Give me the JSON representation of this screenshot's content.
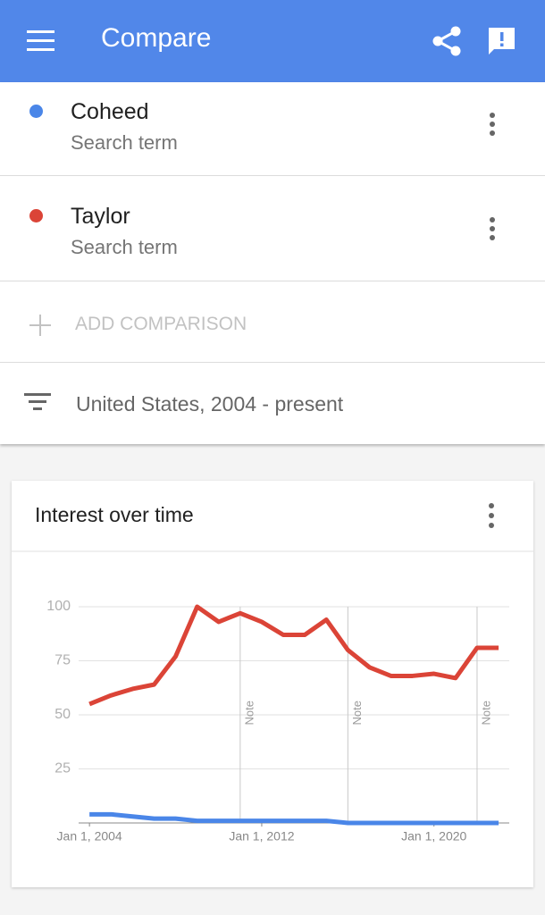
{
  "header": {
    "title": "Compare"
  },
  "add_comparison": "ADD COMPARISON",
  "filter": "United States, 2004 - present",
  "chart_data": {
    "type": "line",
    "title": "Interest over time",
    "x": [
      "2004-01-01",
      "2005-01-01",
      "2006-01-01",
      "2007-01-01",
      "2008-01-01",
      "2009-01-01",
      "2010-01-01",
      "2011-01-01",
      "2012-01-01",
      "2013-01-01",
      "2014-01-01",
      "2015-01-01",
      "2016-01-01",
      "2017-01-01",
      "2018-01-01",
      "2019-01-01",
      "2020-01-01",
      "2021-01-01",
      "2022-01-01",
      "2023-01-01"
    ],
    "series": [
      {
        "name": "Coheed",
        "subtitle": "Search term",
        "color": "#4a86e8",
        "values": [
          4,
          4,
          3,
          2,
          2,
          1,
          1,
          1,
          1,
          1,
          1,
          1,
          0,
          0,
          0,
          0,
          0,
          0,
          0,
          0
        ]
      },
      {
        "name": "Taylor",
        "subtitle": "Search term",
        "color": "#db4437",
        "values": [
          55,
          59,
          62,
          64,
          77,
          100,
          93,
          97,
          93,
          87,
          87,
          94,
          80,
          72,
          68,
          68,
          69,
          67,
          81,
          81
        ]
      }
    ],
    "xlim": [
      "2003-07-01",
      "2023-07-01"
    ],
    "xticks": [
      {
        "value": "2004-01-01",
        "label": "Jan 1, 2004"
      },
      {
        "value": "2012-01-01",
        "label": "Jan 1, 2012"
      },
      {
        "value": "2020-01-01",
        "label": "Jan 1, 2020"
      }
    ],
    "ylim": [
      0,
      100
    ],
    "yticks": [
      25,
      50,
      75,
      100
    ],
    "grid": true,
    "annotations": [
      {
        "x": "2011-01-01",
        "label": "Note"
      },
      {
        "x": "2016-01-01",
        "label": "Note"
      },
      {
        "x": "2022-01-01",
        "label": "Note"
      }
    ]
  }
}
